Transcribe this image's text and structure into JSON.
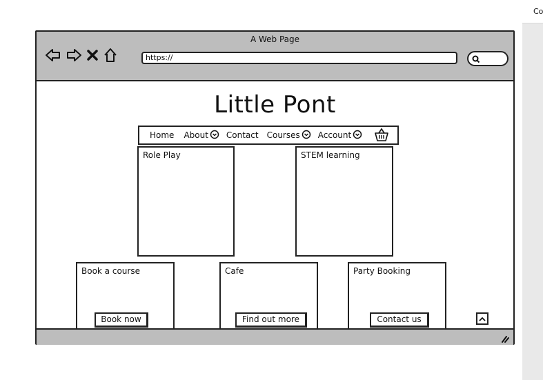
{
  "side_panel": {
    "header": "Co"
  },
  "browser": {
    "title": "A Web Page",
    "url": "https://",
    "nav": [
      "back-icon",
      "forward-icon",
      "stop-icon",
      "home-icon"
    ]
  },
  "page": {
    "site_title": "Little Pont",
    "menu": {
      "home": "Home",
      "about": "About",
      "contact": "Contact",
      "courses": "Courses",
      "account": "Account",
      "basket_icon": "basket-icon"
    },
    "cards_top": [
      {
        "label": "Role Play"
      },
      {
        "label": "STEM learning"
      }
    ],
    "cards_bottom": [
      {
        "label": "Book a course",
        "button": "Book now"
      },
      {
        "label": "Cafe",
        "button": "Find out more"
      },
      {
        "label": "Party Booking",
        "button": "Contact us"
      }
    ]
  },
  "colors": {
    "chrome": "#bdbdbd",
    "stroke": "#222222",
    "panel": "#ececec"
  }
}
